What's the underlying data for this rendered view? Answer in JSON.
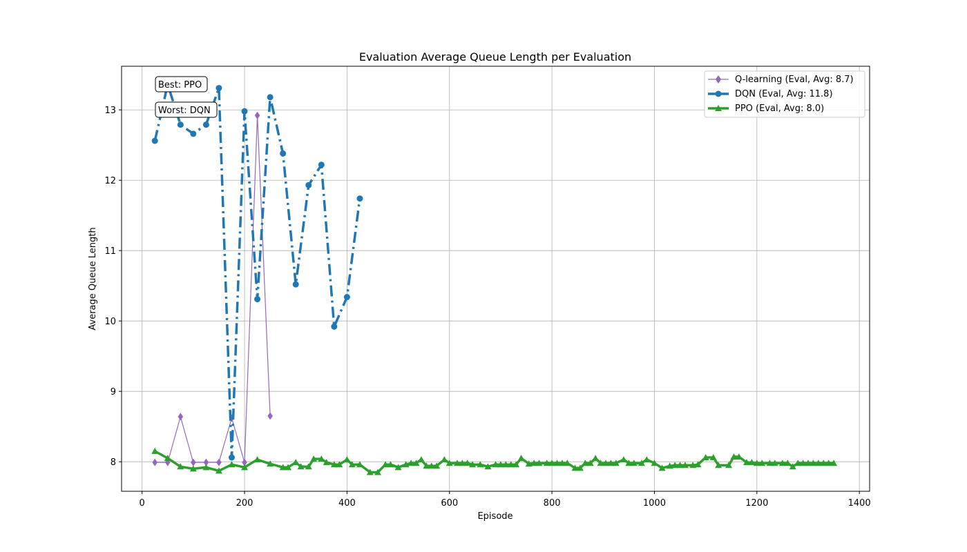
{
  "chart_data": {
    "type": "line",
    "title": "Evaluation Average Queue Length per Evaluation",
    "xlabel": "Episode",
    "ylabel": "Average Queue Length",
    "xlim": [
      -40,
      1420
    ],
    "ylim": [
      7.58,
      13.62
    ],
    "xticks": [
      0,
      200,
      400,
      600,
      800,
      1000,
      1200,
      1400
    ],
    "yticks": [
      8,
      9,
      10,
      11,
      12,
      13
    ],
    "grid": true,
    "legend_position": "top-right",
    "annotations": [
      "Best: PPO",
      "Worst: DQN"
    ],
    "series": [
      {
        "name": "Q-learning (Eval, Avg: 8.7)",
        "color": "#9467bd",
        "marker": "diamond",
        "line_style": "solid",
        "x": [
          25,
          50,
          75,
          100,
          125,
          150,
          175,
          200,
          225,
          250
        ],
        "y": [
          7.99,
          7.99,
          8.64,
          7.99,
          7.99,
          7.99,
          8.62,
          7.99,
          12.92,
          8.65
        ]
      },
      {
        "name": "DQN (Eval, Avg: 11.8)",
        "color": "#1f77b4",
        "marker": "circle",
        "line_style": "dashdot",
        "x": [
          25,
          50,
          75,
          100,
          125,
          150,
          175,
          200,
          225,
          250,
          275,
          300,
          325,
          350,
          375,
          400,
          425
        ],
        "y": [
          12.56,
          13.36,
          12.79,
          12.66,
          12.79,
          13.31,
          8.06,
          12.98,
          10.31,
          13.18,
          12.38,
          10.52,
          11.93,
          12.22,
          9.92,
          10.34,
          11.74
        ]
      },
      {
        "name": "PPO (Eval, Avg: 8.0)",
        "color": "#2ca02c",
        "marker": "triangle",
        "line_style": "solid",
        "x": [
          25,
          50,
          75,
          100,
          125,
          150,
          175,
          200,
          225,
          250,
          275,
          285,
          300,
          310,
          325,
          335,
          350,
          360,
          375,
          385,
          400,
          410,
          425,
          445,
          460,
          475,
          485,
          500,
          515,
          525,
          535,
          545,
          555,
          565,
          575,
          590,
          600,
          615,
          625,
          635,
          645,
          660,
          675,
          690,
          700,
          710,
          720,
          730,
          740,
          755,
          765,
          775,
          790,
          800,
          810,
          820,
          830,
          845,
          855,
          865,
          875,
          885,
          895,
          905,
          915,
          925,
          940,
          950,
          960,
          975,
          985,
          1000,
          1015,
          1030,
          1040,
          1050,
          1060,
          1075,
          1085,
          1100,
          1115,
          1125,
          1145,
          1155,
          1165,
          1180,
          1190,
          1200,
          1210,
          1225,
          1235,
          1250,
          1260,
          1270,
          1280,
          1290,
          1300,
          1310,
          1320,
          1330,
          1340,
          1350
        ],
        "y": [
          8.15,
          8.05,
          7.93,
          7.9,
          7.92,
          7.87,
          7.96,
          7.92,
          8.03,
          7.97,
          7.92,
          7.92,
          7.99,
          7.93,
          7.93,
          8.04,
          8.04,
          7.99,
          7.96,
          7.96,
          8.03,
          7.96,
          7.96,
          7.85,
          7.85,
          7.96,
          7.96,
          7.92,
          7.96,
          7.98,
          7.98,
          8.03,
          7.94,
          7.94,
          7.94,
          8.03,
          7.98,
          7.98,
          7.98,
          7.98,
          7.96,
          7.96,
          7.93,
          7.96,
          7.96,
          7.96,
          7.96,
          7.96,
          8.05,
          7.97,
          7.98,
          7.98,
          7.98,
          7.98,
          7.98,
          7.98,
          7.98,
          7.91,
          7.91,
          7.98,
          7.98,
          8.05,
          7.98,
          7.98,
          7.98,
          7.98,
          8.03,
          7.98,
          7.98,
          7.98,
          8.03,
          7.98,
          7.91,
          7.94,
          7.95,
          7.95,
          7.95,
          7.95,
          7.96,
          8.06,
          8.06,
          7.95,
          7.95,
          8.07,
          8.07,
          7.99,
          7.99,
          7.98,
          7.98,
          7.98,
          7.98,
          7.98,
          7.98,
          7.93,
          7.98,
          7.98,
          7.98,
          7.98,
          7.98,
          7.98,
          7.98,
          7.98
        ]
      }
    ]
  }
}
